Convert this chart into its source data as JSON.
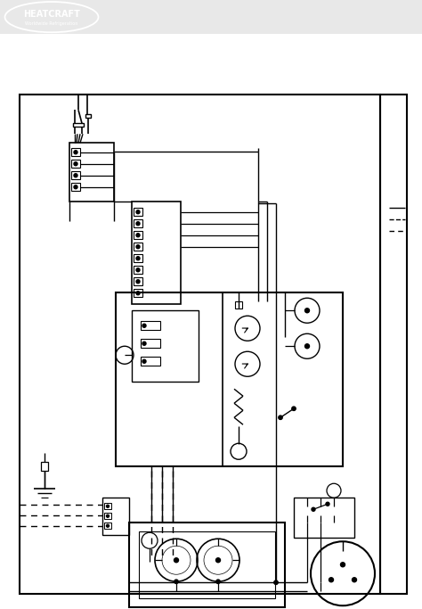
{
  "bg_header": "#111111",
  "bg_diagram": "#ffffff",
  "bg_page": "#ffffff",
  "lc": "#000000",
  "figsize": [
    4.74,
    6.83
  ],
  "dpi": 100,
  "title": "HEATCRAFT",
  "subtitle": "Worldwide Refrigeration"
}
